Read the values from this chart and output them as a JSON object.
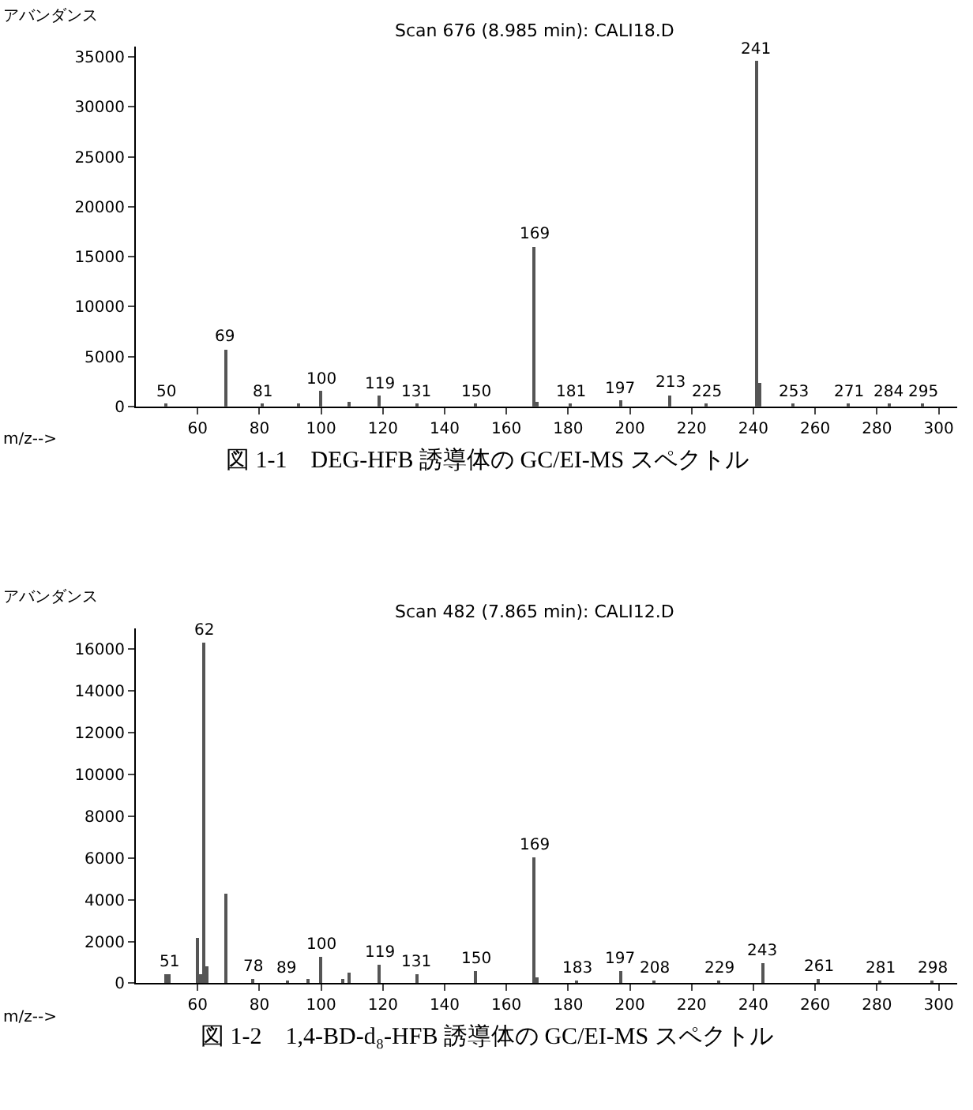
{
  "chart_data": [
    {
      "type": "bar",
      "title": "Scan 676 (8.985 min): CALI18.D",
      "xlabel": "m/z-->",
      "ylabel": "アバンダンス",
      "x": [
        50,
        69,
        81,
        93,
        100,
        109,
        119,
        131,
        150,
        169,
        170,
        181,
        197,
        213,
        225,
        241,
        242,
        253,
        271,
        284,
        295
      ],
      "values": [
        300,
        5700,
        200,
        300,
        1500,
        400,
        1000,
        200,
        300,
        16000,
        500,
        200,
        600,
        1100,
        200,
        34500,
        2300,
        200,
        300,
        200,
        200
      ],
      "color": "#555555",
      "xlim": [
        40,
        306
      ],
      "xticks": [
        60,
        80,
        100,
        120,
        140,
        160,
        180,
        200,
        220,
        240,
        260,
        280,
        300
      ],
      "ylim": [
        0,
        36000
      ],
      "yticks": [
        0,
        5000,
        10000,
        15000,
        20000,
        25000,
        30000,
        35000
      ],
      "annotations": [
        "図 1-1　DEG-HFB 誘導体の GC/EI-MS スペクトル",
        {
          "text": "50",
          "x": 50,
          "y": 300
        },
        {
          "text": "69",
          "x": 69,
          "y": 5700
        },
        {
          "text": "81",
          "x": 81,
          "y": 200
        },
        {
          "text": "100",
          "x": 100,
          "y": 1500
        },
        {
          "text": "119",
          "x": 119,
          "y": 1000
        },
        {
          "text": "131",
          "x": 131,
          "y": 200
        },
        {
          "text": "150",
          "x": 150,
          "y": 300
        },
        {
          "text": "169",
          "x": 169,
          "y": 16000
        },
        {
          "text": "181",
          "x": 181,
          "y": 200
        },
        {
          "text": "197",
          "x": 197,
          "y": 600
        },
        {
          "text": "213",
          "x": 213,
          "y": 1100
        },
        {
          "text": "225",
          "x": 225,
          "y": 200
        },
        {
          "text": "241",
          "x": 241,
          "y": 34500
        },
        {
          "text": "253",
          "x": 253,
          "y": 200
        },
        {
          "text": "271",
          "x": 271,
          "y": 300
        },
        {
          "text": "284",
          "x": 284,
          "y": 200
        },
        {
          "text": "295",
          "x": 295,
          "y": 200
        }
      ]
    },
    {
      "type": "bar",
      "title": "Scan 482 (7.865 min): CALI12.D",
      "xlabel": "m/z-->",
      "ylabel": "アバンダンス",
      "x": [
        50,
        51,
        60,
        61,
        62,
        63,
        69,
        78,
        89,
        96,
        100,
        107,
        109,
        119,
        131,
        150,
        169,
        170,
        183,
        197,
        208,
        229,
        243,
        261,
        281,
        298
      ],
      "values": [
        400,
        400,
        2200,
        400,
        16300,
        800,
        4300,
        200,
        100,
        200,
        1300,
        200,
        500,
        900,
        400,
        600,
        6000,
        300,
        100,
        600,
        150,
        100,
        1000,
        200,
        150,
        100
      ],
      "color": "#555555",
      "xlim": [
        40,
        306
      ],
      "xticks": [
        60,
        80,
        100,
        120,
        140,
        160,
        180,
        200,
        220,
        240,
        260,
        280,
        300
      ],
      "ylim": [
        0,
        17000
      ],
      "yticks": [
        0,
        2000,
        4000,
        6000,
        8000,
        10000,
        12000,
        14000,
        16000
      ],
      "annotations": [
        "図 1-2　1,4-BD-d₈-HFB 誘導体の GC/EI-MS スペクトル",
        {
          "text": "51",
          "x": 51,
          "y": 400
        },
        {
          "text": "62",
          "x": 62,
          "y": 16300
        },
        {
          "text": "78",
          "x": 78,
          "y": 200
        },
        {
          "text": "89",
          "x": 89,
          "y": 100
        },
        {
          "text": "100",
          "x": 100,
          "y": 1300
        },
        {
          "text": "119",
          "x": 119,
          "y": 900
        },
        {
          "text": "131",
          "x": 131,
          "y": 400
        },
        {
          "text": "150",
          "x": 150,
          "y": 600
        },
        {
          "text": "169",
          "x": 169,
          "y": 6000
        },
        {
          "text": "183",
          "x": 183,
          "y": 100
        },
        {
          "text": "197",
          "x": 197,
          "y": 600
        },
        {
          "text": "208",
          "x": 208,
          "y": 150
        },
        {
          "text": "229",
          "x": 229,
          "y": 100
        },
        {
          "text": "243",
          "x": 243,
          "y": 1000
        },
        {
          "text": "261",
          "x": 261,
          "y": 200
        },
        {
          "text": "281",
          "x": 281,
          "y": 150
        },
        {
          "text": "298",
          "x": 298,
          "y": 100
        }
      ]
    }
  ]
}
